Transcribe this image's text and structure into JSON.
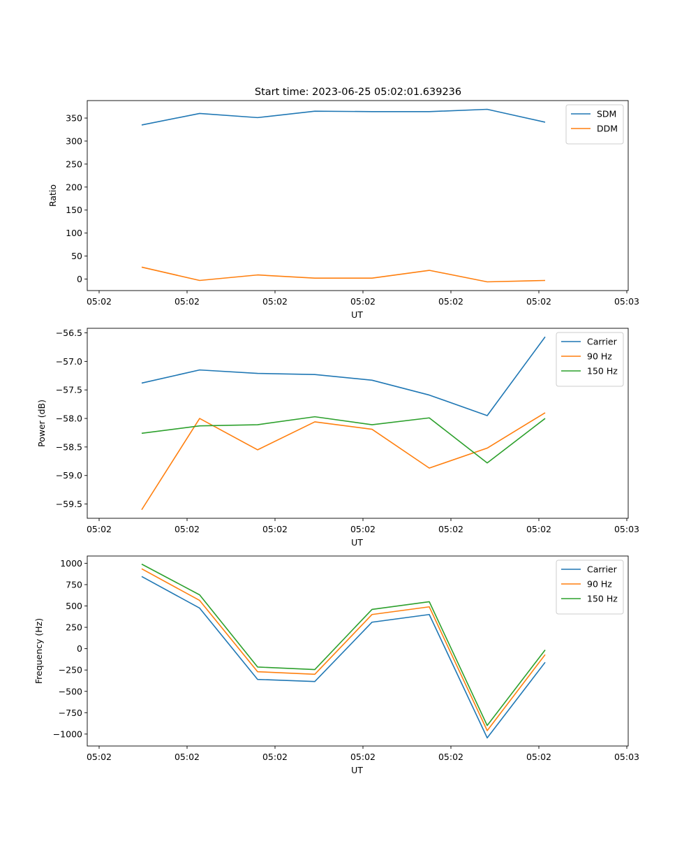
{
  "figure": {
    "title": "Start time: 2023-06-25 05:02:01.639236"
  },
  "colors": {
    "blue": "#1f77b4",
    "orange": "#ff7f0e",
    "green": "#2ca02c"
  },
  "chart_data": [
    {
      "type": "line",
      "title": "Start time: 2023-06-25 05:02:01.639236",
      "xlabel": "UT",
      "ylabel": "Ratio",
      "x_ticks": [
        "05:02",
        "05:02",
        "05:02",
        "05:02",
        "05:02",
        "05:02",
        "05:03"
      ],
      "y_ticks": [
        0,
        50,
        100,
        150,
        200,
        250,
        300,
        350
      ],
      "ylim": [
        -25,
        388
      ],
      "legend_position": "top-right",
      "series": [
        {
          "name": "SDM",
          "color": "#1f77b4",
          "values": [
            335,
            360,
            351,
            365,
            364,
            364,
            369,
            341
          ]
        },
        {
          "name": "DDM",
          "color": "#ff7f0e",
          "values": [
            26,
            -3,
            9,
            2,
            2,
            19,
            -6,
            -3
          ]
        }
      ]
    },
    {
      "type": "line",
      "xlabel": "UT",
      "ylabel": "Power (dB)",
      "x_ticks": [
        "05:02",
        "05:02",
        "05:02",
        "05:02",
        "05:02",
        "05:02",
        "05:03"
      ],
      "y_ticks": [
        -59.5,
        -59.0,
        -58.5,
        -58.0,
        -57.5,
        -57.0,
        -56.5
      ],
      "y_tick_labels": [
        "−59.5",
        "−59.0",
        "−58.5",
        "−58.0",
        "−57.5",
        "−57.0",
        "−56.5"
      ],
      "ylim": [
        -59.75,
        -56.42
      ],
      "legend_position": "top-right",
      "series": [
        {
          "name": "Carrier",
          "color": "#1f77b4",
          "values": [
            -57.38,
            -57.15,
            -57.21,
            -57.23,
            -57.33,
            -57.59,
            -57.95,
            -56.57
          ]
        },
        {
          "name": "90 Hz",
          "color": "#ff7f0e",
          "values": [
            -59.6,
            -58.0,
            -58.55,
            -58.06,
            -58.19,
            -58.87,
            -58.52,
            -57.9
          ]
        },
        {
          "name": "150 Hz",
          "color": "#2ca02c",
          "values": [
            -58.26,
            -58.13,
            -58.11,
            -57.97,
            -58.11,
            -57.99,
            -58.78,
            -58.0
          ]
        }
      ]
    },
    {
      "type": "line",
      "xlabel": "UT",
      "ylabel": "Frequency (Hz)",
      "x_ticks": [
        "05:02",
        "05:02",
        "05:02",
        "05:02",
        "05:02",
        "05:02",
        "05:03"
      ],
      "y_ticks": [
        -1000,
        -750,
        -500,
        -250,
        0,
        250,
        500,
        750,
        1000
      ],
      "y_tick_labels": [
        "−1000",
        "−750",
        "−500",
        "−250",
        "0",
        "250",
        "500",
        "750",
        "1000"
      ],
      "ylim": [
        -1140,
        1085
      ],
      "legend_position": "top-right",
      "series": [
        {
          "name": "Carrier",
          "color": "#1f77b4",
          "values": [
            845,
            475,
            -360,
            -385,
            310,
            400,
            -1045,
            -160
          ]
        },
        {
          "name": "90 Hz",
          "color": "#ff7f0e",
          "values": [
            935,
            565,
            -270,
            -300,
            400,
            490,
            -960,
            -70
          ]
        },
        {
          "name": "150 Hz",
          "color": "#2ca02c",
          "values": [
            990,
            630,
            -215,
            -245,
            460,
            550,
            -900,
            -15
          ]
        }
      ]
    }
  ]
}
